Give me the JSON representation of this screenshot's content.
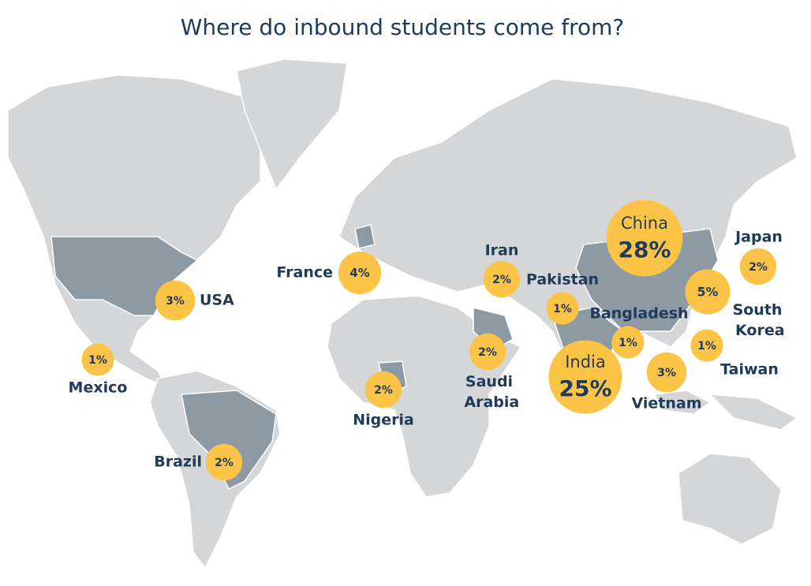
{
  "title": "Where do inbound students come from?",
  "countries": [
    {
      "name": "China",
      "value": 28,
      "value_label": "28%"
    },
    {
      "name": "India",
      "value": 25,
      "value_label": "25%"
    },
    {
      "name": "France",
      "value": 4,
      "value_label": "4%"
    },
    {
      "name": "USA",
      "value": 3,
      "value_label": "3%"
    },
    {
      "name": "Mexico",
      "value": 1,
      "value_label": "1%"
    },
    {
      "name": "Brazil",
      "value": 2,
      "value_label": "2%"
    },
    {
      "name": "Nigeria",
      "value": 2,
      "value_label": "2%"
    },
    {
      "name": "Saudi Arabia",
      "value": 2,
      "value_label": "2%"
    },
    {
      "name": "Iran",
      "value": 2,
      "value_label": "2%"
    },
    {
      "name": "Pakistan",
      "value": 1,
      "value_label": "1%"
    },
    {
      "name": "Bangladesh",
      "value": 1,
      "value_label": "1%"
    },
    {
      "name": "Vietnam",
      "value": 3,
      "value_label": "3%"
    },
    {
      "name": "Taiwan",
      "value": 1,
      "value_label": "1%"
    },
    {
      "name": "South Korea",
      "value": 5,
      "value_label": "5%"
    },
    {
      "name": "Japan",
      "value": 2,
      "value_label": "2%"
    }
  ]
}
